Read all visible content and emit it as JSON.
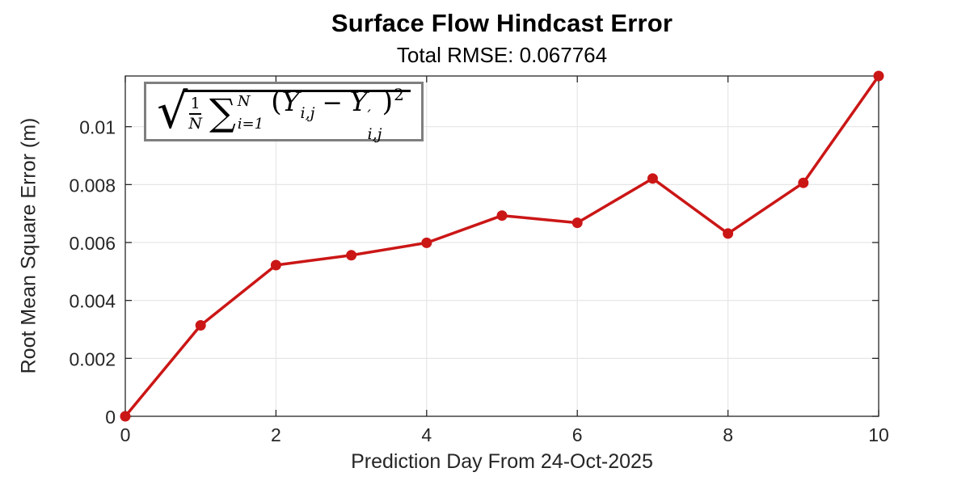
{
  "header": {
    "title": "Surface Flow Hindcast Error",
    "subtitle": "Total RMSE: 0.067764"
  },
  "axes": {
    "x_label": "Prediction Day From 24-Oct-2025",
    "y_label": "Root Mean Square Error (m)"
  },
  "formula": {
    "sqrt": "√",
    "num": "1",
    "den": "N",
    "sum": "∑",
    "sum_sup": "N",
    "sum_sub": "i=1",
    "lparen": "(",
    "y": "Y",
    "y_sub": "i,j",
    "minus": "−",
    "y2": "Y",
    "prime": "′",
    "y2_sub": "i,j",
    "rparen": ")",
    "expo": "2"
  },
  "chart_data": {
    "type": "line",
    "title": "Surface Flow Hindcast Error",
    "subtitle": "Total RMSE: 0.067764",
    "xlabel": "Prediction Day From 24-Oct-2025",
    "ylabel": "Root Mean Square Error (m)",
    "x": [
      0,
      1,
      2,
      3,
      4,
      5,
      6,
      7,
      8,
      9,
      10
    ],
    "values": [
      0.0,
      0.00314,
      0.00522,
      0.00556,
      0.00599,
      0.00693,
      0.00668,
      0.00821,
      0.00631,
      0.00806,
      0.01175
    ],
    "xlim": [
      0,
      10
    ],
    "ylim": [
      0,
      0.01175
    ],
    "x_ticks": [
      0,
      2,
      4,
      6,
      8,
      10
    ],
    "x_tick_labels": [
      "0",
      "2",
      "4",
      "6",
      "8",
      "10"
    ],
    "y_ticks": [
      0,
      0.002,
      0.004,
      0.006,
      0.008,
      0.01
    ],
    "y_tick_labels": [
      "0",
      "0.002",
      "0.004",
      "0.006",
      "0.008",
      "0.01"
    ],
    "grid": true,
    "legend": "none",
    "marker": "filled-circle",
    "annotation_formula": "sqrt((1/N) * sum_{i=1}^{N} (Y_i,j - Y'_i,j)^2)",
    "colors": {
      "line": "#cb1616",
      "marker": "#cb1616",
      "grid": "#e6e6e6",
      "axis": "#262626",
      "tick_label": "#262626",
      "annotation_border": "#7f7f7f",
      "title_text": "#000000"
    }
  }
}
